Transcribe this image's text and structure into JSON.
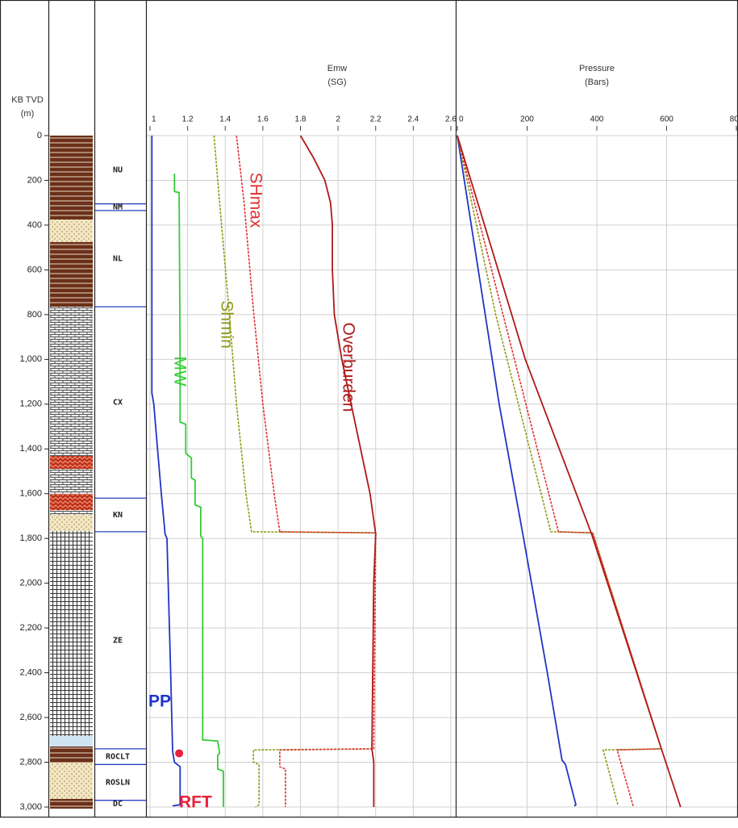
{
  "chart_data": {
    "type": "well-log",
    "ylabel": "KB TVD",
    "yunit": "(m)",
    "ylim": [
      0,
      3000
    ],
    "yticks": [
      0,
      200,
      400,
      600,
      800,
      {
        "value": 1000,
        "label": "1,000"
      },
      {
        "value": 1200,
        "label": "1,200"
      },
      {
        "value": 1400,
        "label": "1,400"
      },
      {
        "value": 1600,
        "label": "1,600"
      },
      {
        "value": 1800,
        "label": "1,800"
      },
      {
        "value": 2000,
        "label": "2,000"
      },
      {
        "value": 2200,
        "label": "2,200"
      },
      {
        "value": 2400,
        "label": "2,400"
      },
      {
        "value": 2600,
        "label": "2,600"
      },
      {
        "value": 2800,
        "label": "2,800"
      },
      {
        "value": 3000,
        "label": "3,000"
      }
    ],
    "grid": true,
    "formations": [
      {
        "name": "NU",
        "top": 0
      },
      {
        "name": "NM",
        "top": 305
      },
      {
        "name": "NL",
        "top": 335
      },
      {
        "name": "CX",
        "top": 765
      },
      {
        "name": "KN",
        "top": 1620
      },
      {
        "name": "ZE",
        "top": 1770
      },
      {
        "name": "ROCLT",
        "top": 2740
      },
      {
        "name": "ROSLN",
        "top": 2810
      },
      {
        "name": "DC",
        "top": 2970
      }
    ],
    "tracks": [
      {
        "title": "Emw",
        "unit": "(SG)",
        "xlim": [
          1,
          2.6
        ],
        "xticks": [
          1,
          1.2,
          1.4,
          1.6,
          1.8,
          2,
          2.2,
          2.4,
          2.6
        ],
        "series": [
          {
            "name": "PP",
            "color": "#1f35c4",
            "dash": false,
            "depth": [
              0,
              1150,
              1200,
              1400,
              1600,
              1780,
              1800,
              2100,
              2400,
              2750,
              2800,
              2820,
              2990,
              2995
            ],
            "values": [
              1.01,
              1.01,
              1.02,
              1.04,
              1.06,
              1.08,
              1.09,
              1.1,
              1.11,
              1.12,
              1.13,
              1.16,
              1.16,
              1.12
            ]
          },
          {
            "name": "MW",
            "color": "#33cc33",
            "dash": false,
            "depth": [
              170,
              250,
              255,
              1000,
              1280,
              1290,
              1420,
              1440,
              1530,
              1540,
              1650,
              1660,
              1790,
              1800,
              2700,
              2705,
              2760,
              2770,
              2830,
              2840,
              3000
            ],
            "values": [
              1.13,
              1.13,
              1.155,
              1.16,
              1.16,
              1.19,
              1.19,
              1.22,
              1.22,
              1.24,
              1.24,
              1.27,
              1.27,
              1.28,
              1.28,
              1.36,
              1.37,
              1.36,
              1.36,
              1.39,
              1.39
            ]
          },
          {
            "name": "Shmin",
            "color": "#8c9a12",
            "dash": true,
            "depth": [
              0,
              300,
              780,
              1200,
              1600,
              1770,
              1775,
              2000,
              2740,
              2745,
              2800,
              2810,
              2990,
              3000
            ],
            "values": [
              1.34,
              1.37,
              1.42,
              1.46,
              1.51,
              1.54,
              2.2,
              2.19,
              2.18,
              1.55,
              1.55,
              1.58,
              1.58,
              1.56
            ]
          },
          {
            "name": "SHmax",
            "color": "#e03030",
            "dash": true,
            "depth": [
              0,
              300,
              780,
              1200,
              1600,
              1770,
              1775,
              2740,
              2745,
              2820,
              2830,
              3000
            ],
            "values": [
              1.46,
              1.5,
              1.55,
              1.6,
              1.66,
              1.69,
              2.2,
              2.19,
              1.69,
              1.69,
              1.72,
              1.72
            ]
          },
          {
            "name": "Overburden",
            "color": "#b01818",
            "dash": false,
            "depth": [
              0,
              100,
              200,
              300,
              400,
              600,
              800,
              1000,
              1200,
              1400,
              1600,
              1780,
              2000,
              2740,
              2800,
              3000
            ],
            "values": [
              1.8,
              1.87,
              1.93,
              1.96,
              1.97,
              1.97,
              1.98,
              2.02,
              2.07,
              2.12,
              2.17,
              2.2,
              2.19,
              2.18,
              2.19,
              2.19
            ]
          }
        ],
        "rft": {
          "label": "RFT",
          "color": "#e8223a",
          "depth": 2760,
          "value": 1.155
        }
      },
      {
        "title": "Pressure",
        "unit": "(Bars)",
        "xlim": [
          0,
          800
        ],
        "xticks": [
          0,
          200,
          400,
          600,
          800
        ],
        "series": [
          {
            "color": "#1f35c4",
            "dash": false,
            "depth": [
              0,
              1200,
              1800,
              2400,
              2790,
              2810,
              2990,
              2995
            ],
            "values": [
              0,
              120,
              190,
              258,
              300,
              310,
              340,
              335
            ]
          },
          {
            "color": "#8c9a12",
            "dash": true,
            "depth": [
              0,
              800,
              1770,
              1775,
              2740,
              2745,
              2990
            ],
            "values": [
              0,
              110,
              268,
              388,
              585,
              418,
              460
            ]
          },
          {
            "color": "#e03030",
            "dash": true,
            "depth": [
              0,
              1770,
              1775,
              2740,
              2745,
              3000
            ],
            "values": [
              0,
              290,
              388,
              585,
              458,
              505
            ]
          },
          {
            "color": "#b01818",
            "dash": false,
            "depth": [
              0,
              1000,
              1780,
              2740,
              3000
            ],
            "values": [
              0,
              195,
              385,
              585,
              640
            ]
          }
        ]
      }
    ]
  }
}
